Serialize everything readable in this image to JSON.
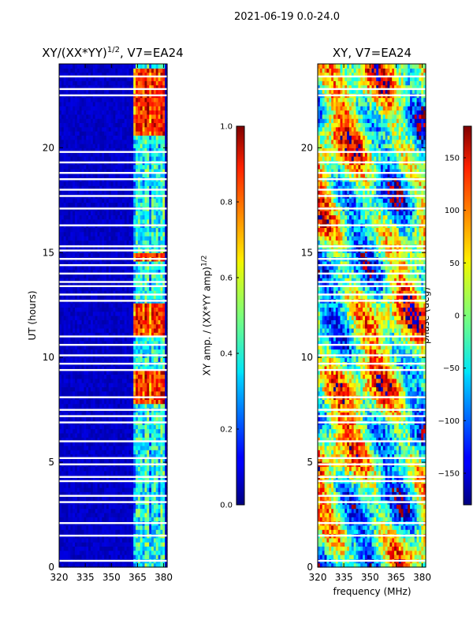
{
  "suptitle": "2021-06-19 0.0-24.0",
  "chart_data": [
    {
      "type": "heatmap",
      "title": "XY/(XX*YY)",
      "title_exp": "1/2",
      "title_suffix": ", V7=EA24",
      "xlabel": "",
      "ylabel": "UT (hours)",
      "xlim": [
        320,
        382
      ],
      "ylim": [
        0,
        24
      ],
      "x_ticks": [
        "320",
        "335",
        "350",
        "365",
        "380"
      ],
      "x_tick_values": [
        320,
        335,
        350,
        365,
        380
      ],
      "y_ticks": [
        "0",
        "5",
        "10",
        "15",
        "20"
      ],
      "y_tick_values": [
        0,
        5,
        10,
        15,
        20
      ],
      "colorbar": {
        "label": "XY amp. / (XX*YY amp)",
        "label_exp": "1/2",
        "range": [
          0.0,
          1.0
        ],
        "ticks": [
          "0.0",
          "0.2",
          "0.4",
          "0.6",
          "0.8",
          "1.0"
        ],
        "tick_values": [
          0.0,
          0.2,
          0.4,
          0.6,
          0.8,
          1.0
        ]
      },
      "signal_freq_range_mhz": [
        363,
        381
      ],
      "high_amp_intervals_ut": [
        [
          7.8,
          9.3
        ],
        [
          11.1,
          12.6
        ],
        [
          14.6,
          14.9
        ],
        [
          20.6,
          23.8
        ]
      ],
      "flagged_ut": [
        0.3,
        1.5,
        2.1,
        3.1,
        3.4,
        4.1,
        4.3,
        4.9,
        5.2,
        6.0,
        6.9,
        7.2,
        7.5,
        8.1,
        9.4,
        9.7,
        10.1,
        10.6,
        11.0,
        12.7,
        13.0,
        13.4,
        13.6,
        14.0,
        14.4,
        14.7,
        15.1,
        15.3,
        16.3,
        17.1,
        17.7,
        18.0,
        18.5,
        18.8,
        19.3,
        19.8,
        22.5,
        22.8,
        23.4
      ]
    },
    {
      "type": "heatmap",
      "title": "XY, V7=EA24",
      "xlabel": "frequency (MHz)",
      "ylabel": "",
      "xlim": [
        320,
        382
      ],
      "ylim": [
        0,
        24
      ],
      "x_ticks": [
        "320",
        "335",
        "350",
        "365",
        "380"
      ],
      "x_tick_values": [
        320,
        335,
        350,
        365,
        380
      ],
      "y_ticks": [
        "0",
        "5",
        "10",
        "15",
        "20"
      ],
      "y_tick_values": [
        0,
        5,
        10,
        15,
        20
      ],
      "colorbar": {
        "label": "phase (deg)",
        "range": [
          -180,
          180
        ],
        "ticks": [
          "−150",
          "−100",
          "−50",
          "0",
          "50",
          "100",
          "150"
        ],
        "tick_values": [
          -150,
          -100,
          -50,
          0,
          50,
          100,
          150
        ]
      },
      "flagged_ut": [
        0.3,
        1.5,
        2.1,
        3.1,
        3.4,
        4.1,
        4.3,
        4.9,
        5.2,
        6.0,
        6.9,
        7.2,
        7.5,
        8.1,
        9.4,
        9.7,
        10.1,
        10.6,
        11.0,
        12.7,
        13.0,
        13.4,
        13.6,
        14.0,
        14.4,
        14.7,
        15.1,
        15.3,
        16.3,
        17.1,
        17.7,
        18.0,
        18.5,
        18.8,
        19.3,
        19.8,
        22.5,
        22.8,
        23.4
      ]
    }
  ]
}
